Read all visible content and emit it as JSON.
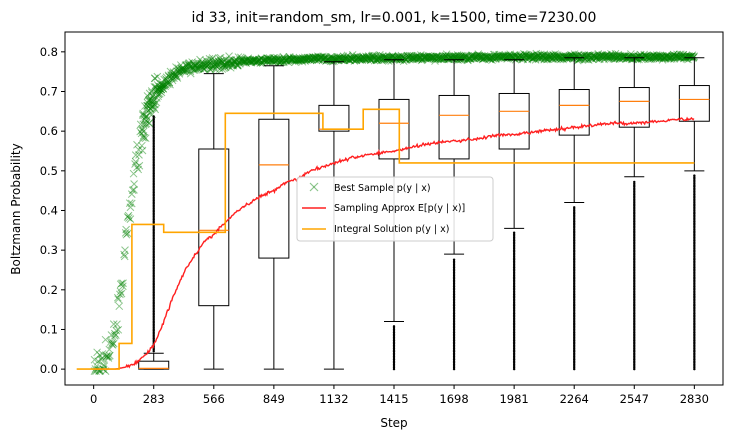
{
  "chart_data": {
    "type": "line",
    "title": "id 33, init=random_sm, lr=0.001, k=1500, time=7230.00",
    "xlabel": "Step",
    "ylabel": "Boltzmann Probability",
    "xlim": [
      -135,
      2965
    ],
    "ylim": [
      -0.04,
      0.85
    ],
    "x_ticks": [
      0,
      283,
      566,
      849,
      1132,
      1415,
      1698,
      1981,
      2264,
      2547,
      2830
    ],
    "y_ticks": [
      0.0,
      0.1,
      0.2,
      0.3,
      0.4,
      0.5,
      0.6,
      0.7,
      0.8
    ],
    "y_tick_labels": [
      "0.0",
      "0.1",
      "0.2",
      "0.3",
      "0.4",
      "0.5",
      "0.6",
      "0.7",
      "0.8"
    ],
    "legend": {
      "placement": "center",
      "entries": [
        "Best Sample p(y | x)",
        "Sampling Approx E[p(y | x)]",
        "Integral Solution p(y | x)"
      ]
    },
    "colors": {
      "best_sample": "#008000",
      "sampling_approx": "#ff2020",
      "integral": "#ffa500",
      "box": "#000000",
      "median": "#ff7f0e"
    },
    "series": [
      {
        "name": "Sampling Approx E[p(y | x)]",
        "x": [
          0,
          100,
          150,
          200,
          250,
          283,
          330,
          380,
          430,
          480,
          520,
          566,
          620,
          680,
          740,
          800,
          849,
          900,
          960,
          1020,
          1080,
          1132,
          1200,
          1280,
          1350,
          1415,
          1500,
          1600,
          1698,
          1800,
          1900,
          1981,
          2100,
          2200,
          2264,
          2350,
          2450,
          2547,
          2650,
          2750,
          2830
        ],
        "y": [
          0.0,
          0.0,
          0.005,
          0.015,
          0.04,
          0.06,
          0.12,
          0.19,
          0.25,
          0.29,
          0.32,
          0.34,
          0.37,
          0.4,
          0.42,
          0.44,
          0.45,
          0.47,
          0.48,
          0.5,
          0.51,
          0.52,
          0.53,
          0.54,
          0.545,
          0.55,
          0.56,
          0.57,
          0.575,
          0.58,
          0.59,
          0.59,
          0.6,
          0.605,
          0.61,
          0.615,
          0.62,
          0.62,
          0.625,
          0.63,
          0.63
        ]
      },
      {
        "name": "Integral Solution p(y | x)",
        "step": [
          [
            -80,
            0.0
          ],
          [
            120,
            0.0
          ],
          [
            120,
            0.065
          ],
          [
            180,
            0.065
          ],
          [
            180,
            0.365
          ],
          [
            330,
            0.365
          ],
          [
            330,
            0.345
          ],
          [
            620,
            0.345
          ],
          [
            620,
            0.645
          ],
          [
            1080,
            0.645
          ],
          [
            1080,
            0.605
          ],
          [
            1270,
            0.605
          ],
          [
            1270,
            0.655
          ],
          [
            1440,
            0.655
          ],
          [
            1440,
            0.52
          ],
          [
            2830,
            0.52
          ]
        ]
      }
    ],
    "best_sample_curve": {
      "x": [
        0,
        50,
        100,
        140,
        180,
        220,
        260,
        300,
        350,
        400,
        450,
        500,
        600,
        700,
        800,
        900,
        1000,
        1200,
        1400,
        1600,
        1800,
        2000,
        2200,
        2400,
        2600,
        2830
      ],
      "y": [
        0.0,
        0.02,
        0.08,
        0.25,
        0.45,
        0.58,
        0.66,
        0.7,
        0.73,
        0.75,
        0.76,
        0.765,
        0.77,
        0.775,
        0.778,
        0.78,
        0.782,
        0.783,
        0.785,
        0.785,
        0.786,
        0.787,
        0.787,
        0.787,
        0.787,
        0.788
      ]
    },
    "boxplots": [
      {
        "x": 283,
        "whisker_low": 0.0,
        "q1": 0.0,
        "median": 0.002,
        "q3": 0.02,
        "whisker_high": 0.04,
        "outlier_high": 0.64,
        "outlier_low": null
      },
      {
        "x": 566,
        "whisker_low": 0.0,
        "q1": 0.16,
        "median": 0.35,
        "q3": 0.555,
        "whisker_high": 0.745,
        "outlier_high": null,
        "outlier_low": null
      },
      {
        "x": 849,
        "whisker_low": 0.0,
        "q1": 0.28,
        "median": 0.515,
        "q3": 0.63,
        "whisker_high": 0.765,
        "outlier_high": null,
        "outlier_low": null
      },
      {
        "x": 1132,
        "whisker_low": 0.0,
        "q1": 0.6,
        "median": 0.605,
        "q3": 0.665,
        "whisker_high": 0.775,
        "outlier_high": null,
        "outlier_low": null
      },
      {
        "x": 1415,
        "whisker_low": 0.12,
        "q1": 0.53,
        "median": 0.62,
        "q3": 0.68,
        "whisker_high": 0.78,
        "outlier_high": null,
        "outlier_low": 0.11
      },
      {
        "x": 1698,
        "whisker_low": 0.29,
        "q1": 0.53,
        "median": 0.64,
        "q3": 0.69,
        "whisker_high": 0.78,
        "outlier_high": null,
        "outlier_low": 0.28
      },
      {
        "x": 1981,
        "whisker_low": 0.355,
        "q1": 0.555,
        "median": 0.65,
        "q3": 0.695,
        "whisker_high": 0.78,
        "outlier_high": null,
        "outlier_low": 0.345
      },
      {
        "x": 2264,
        "whisker_low": 0.42,
        "q1": 0.59,
        "median": 0.665,
        "q3": 0.705,
        "whisker_high": 0.785,
        "outlier_high": null,
        "outlier_low": 0.41
      },
      {
        "x": 2547,
        "whisker_low": 0.485,
        "q1": 0.61,
        "median": 0.675,
        "q3": 0.71,
        "whisker_high": 0.785,
        "outlier_high": null,
        "outlier_low": 0.475
      },
      {
        "x": 2830,
        "whisker_low": 0.5,
        "q1": 0.625,
        "median": 0.68,
        "q3": 0.715,
        "whisker_high": 0.785,
        "outlier_high": null,
        "outlier_low": 0.49
      }
    ]
  }
}
